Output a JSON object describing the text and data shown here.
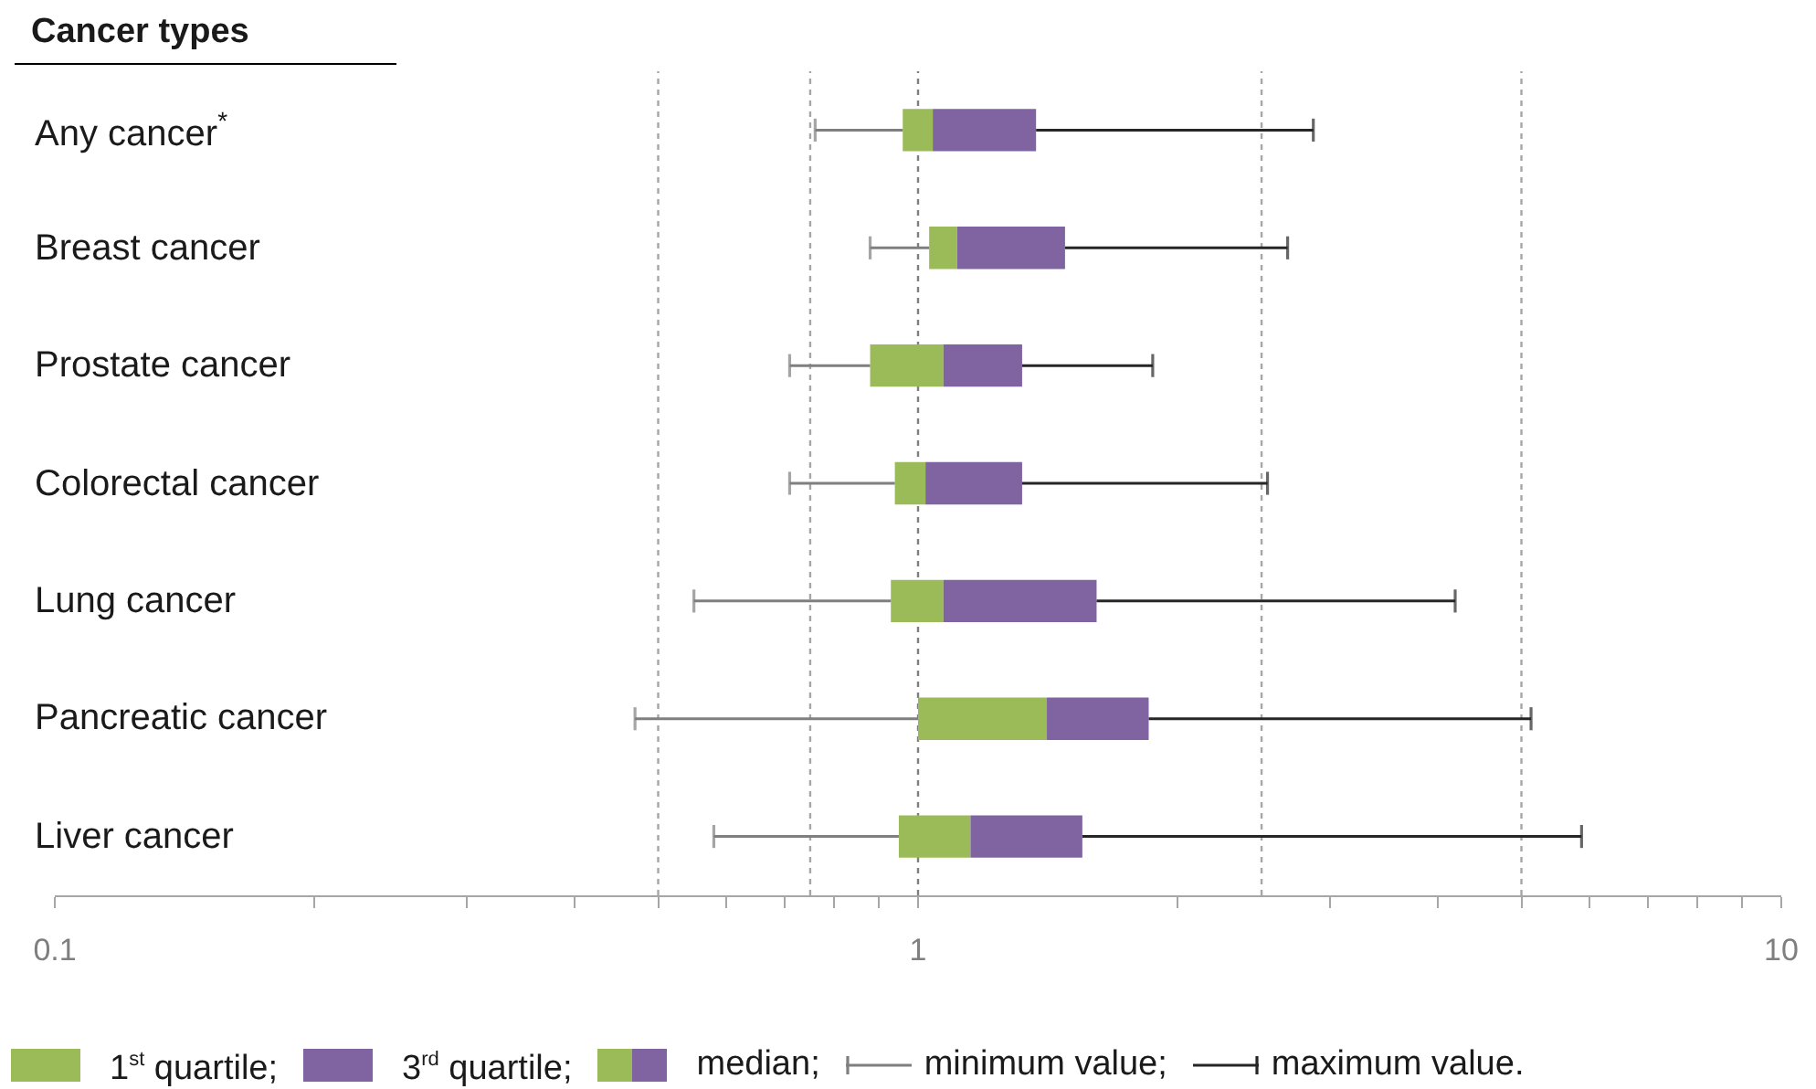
{
  "chart_data": {
    "type": "box",
    "orientation": "horizontal",
    "ylabel": "Cancer types",
    "categories": [
      "Any cancer$^{*}$",
      "Breast cancer",
      "Prostate cancer",
      "Colorectal cancer",
      "Lung cancer",
      "Pancreatic cancer",
      "Liver cancer"
    ],
    "boxes": [
      {
        "low": 0.76,
        "q1": 0.96,
        "median": 1.04,
        "q3": 1.37,
        "high": 2.87
      },
      {
        "low": 0.88,
        "q1": 1.03,
        "median": 1.11,
        "q3": 1.48,
        "high": 2.68
      },
      {
        "low": 0.71,
        "q1": 0.88,
        "median": 1.07,
        "q3": 1.32,
        "high": 1.87
      },
      {
        "low": 0.71,
        "q1": 0.94,
        "median": 1.02,
        "q3": 1.32,
        "high": 2.54
      },
      {
        "low": 0.55,
        "q1": 0.93,
        "median": 1.07,
        "q3": 1.61,
        "high": 4.19
      },
      {
        "low": 0.47,
        "q1": 1.0,
        "median": 1.41,
        "q3": 1.85,
        "high": 5.13
      },
      {
        "low": 0.58,
        "q1": 0.95,
        "median": 1.15,
        "q3": 1.55,
        "high": 5.87
      }
    ],
    "annotations": [
      "1$^{st}$ quartile;",
      "3$^{rd}$ quartile;",
      "median;",
      "minimum value;",
      "maximum value."
    ],
    "log": "x",
    "xlim": [
      0.1,
      10
    ],
    "xticks": [
      0.1,
      {
        "value": 0.2,
        "label": null
      },
      {
        "value": 0.3,
        "label": null
      },
      {
        "value": 0.4,
        "label": null
      },
      {
        "value": 0.5,
        "label": null
      },
      {
        "value": 0.6,
        "label": null
      },
      {
        "value": 0.7,
        "label": null
      },
      {
        "value": 0.8,
        "label": null
      },
      {
        "value": 0.9,
        "label": null
      },
      1,
      {
        "value": 2,
        "label": null
      },
      {
        "value": 3,
        "label": null
      },
      {
        "value": 4,
        "label": null
      },
      {
        "value": 5,
        "label": null
      },
      {
        "value": 6,
        "label": null
      },
      {
        "value": 7,
        "label": null
      },
      {
        "value": 8,
        "label": null
      },
      {
        "value": 9,
        "label": null
      },
      10
    ],
    "ref_lines": [
      {
        "axis": "x",
        "value": 0.5,
        "color": "#a6a6a6",
        "line_style": "dashed"
      },
      {
        "axis": "x",
        "value": 0.75,
        "color": "#a6a6a6",
        "line_style": "dashed"
      },
      {
        "axis": "x",
        "value": 1,
        "color": "#7f7f7f",
        "line_style": "dashed"
      },
      {
        "axis": "x",
        "value": 2.5,
        "color": "#a6a6a6",
        "line_style": "dashed"
      },
      {
        "axis": "x",
        "value": 5,
        "color": "#a6a6a6",
        "line_style": "dashed"
      }
    ]
  }
}
